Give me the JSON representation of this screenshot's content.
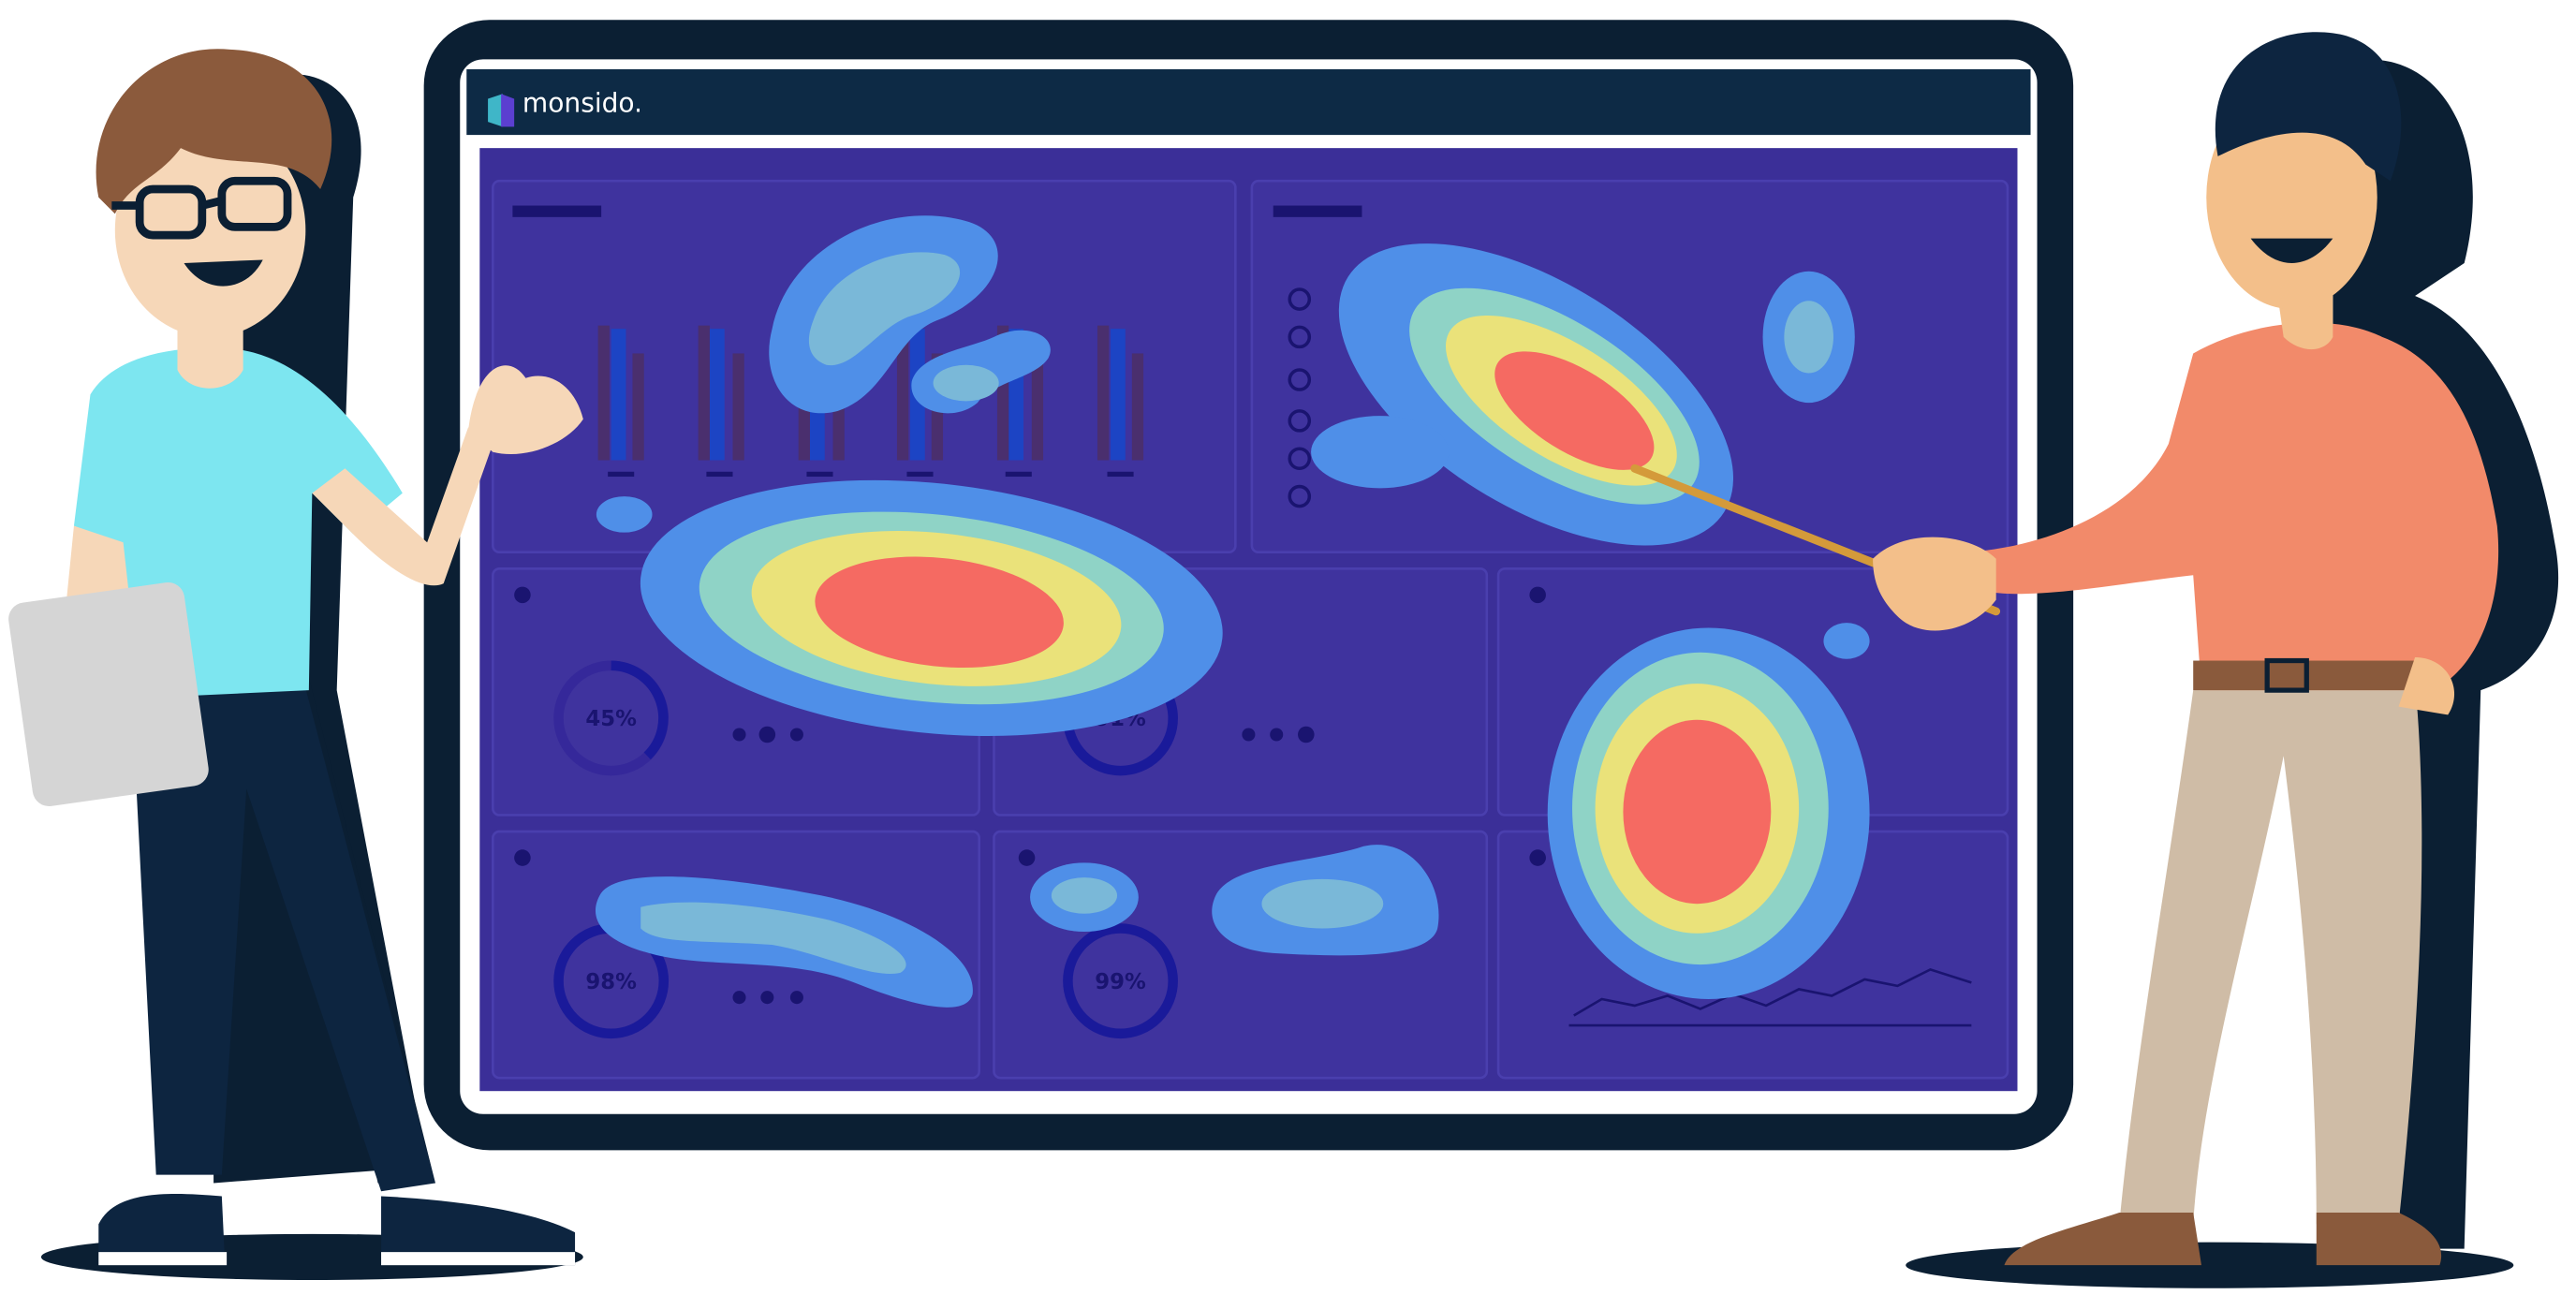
{
  "header": {
    "brand": "monsido."
  },
  "gauges": [
    {
      "label": "45%"
    },
    {
      "label": "91%"
    },
    {
      "label": "98%"
    },
    {
      "label": "99%"
    }
  ]
}
